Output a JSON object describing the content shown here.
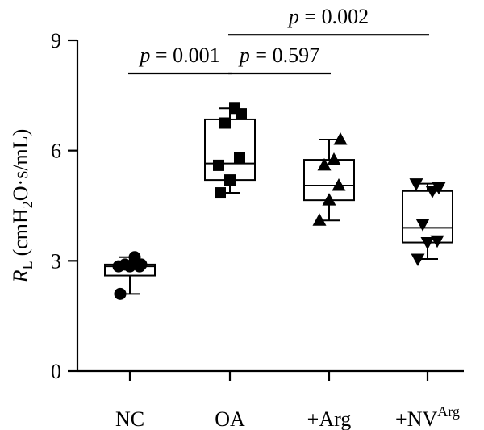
{
  "chart_data": {
    "type": "box",
    "categories": [
      "NC",
      "OA",
      "+Arg",
      "+NV"
    ],
    "category_superscripts": [
      "",
      "",
      "",
      "Arg"
    ],
    "ylabel": {
      "var": "R",
      "var_sub": "L",
      "unit_prefix": "(cmH",
      "unit_sub": "2",
      "unit_suffix": "O·s/mL)"
    },
    "ylim": [
      0,
      9
    ],
    "yticks": [
      0,
      3,
      6,
      9
    ],
    "series": [
      {
        "category": "NC",
        "marker": "circle",
        "box": {
          "min": 2.1,
          "q1": 2.6,
          "median": 2.85,
          "q3": 2.9,
          "max": 3.1
        },
        "points": [
          2.1,
          2.85,
          2.85,
          2.9,
          3.1,
          2.9,
          2.85
        ]
      },
      {
        "category": "OA",
        "marker": "square",
        "box": {
          "min": 4.85,
          "q1": 5.2,
          "median": 5.65,
          "q3": 6.85,
          "max": 7.15
        },
        "points": [
          4.85,
          5.2,
          5.8,
          6.75,
          7.15,
          7.0,
          5.6
        ]
      },
      {
        "category": "+Arg",
        "marker": "triangle-up",
        "box": {
          "min": 4.1,
          "q1": 4.65,
          "median": 5.05,
          "q3": 5.75,
          "max": 6.3
        },
        "points": [
          4.1,
          4.65,
          5.05,
          5.6,
          5.75,
          6.3
        ]
      },
      {
        "category": "+NV",
        "marker": "triangle-down",
        "box": {
          "min": 3.05,
          "q1": 3.5,
          "median": 3.9,
          "q3": 4.9,
          "max": 5.1
        },
        "points": [
          3.05,
          3.5,
          3.55,
          4.0,
          4.9,
          5.0,
          5.1
        ]
      }
    ],
    "significance": [
      {
        "from": 0,
        "to": 1,
        "p_prefix": "p",
        "p_value": " = 0.001",
        "level": 8.1
      },
      {
        "from": 1,
        "to": 2,
        "p_prefix": "p",
        "p_value": " = 0.597",
        "level": 8.1
      },
      {
        "from": 1,
        "to": 3,
        "p_prefix": "p",
        "p_value": " = 0.002",
        "level": 9.15
      }
    ]
  }
}
